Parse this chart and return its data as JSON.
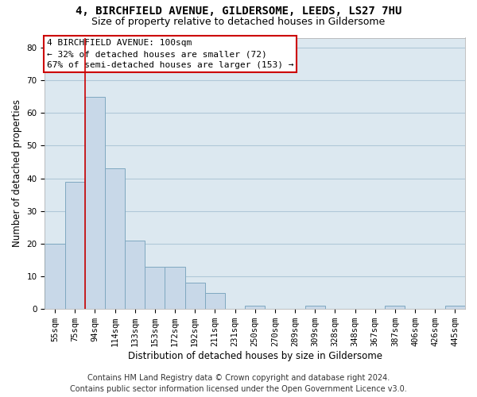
{
  "title1": "4, BIRCHFIELD AVENUE, GILDERSOME, LEEDS, LS27 7HU",
  "title2": "Size of property relative to detached houses in Gildersome",
  "xlabel": "Distribution of detached houses by size in Gildersome",
  "ylabel": "Number of detached properties",
  "bar_labels": [
    "55sqm",
    "75sqm",
    "94sqm",
    "114sqm",
    "133sqm",
    "153sqm",
    "172sqm",
    "192sqm",
    "211sqm",
    "231sqm",
    "250sqm",
    "270sqm",
    "289sqm",
    "309sqm",
    "328sqm",
    "348sqm",
    "367sqm",
    "387sqm",
    "406sqm",
    "426sqm",
    "445sqm"
  ],
  "bar_values": [
    20,
    39,
    65,
    43,
    21,
    13,
    13,
    8,
    5,
    0,
    1,
    0,
    0,
    1,
    0,
    0,
    0,
    1,
    0,
    0,
    1
  ],
  "bar_color": "#c8d8e8",
  "bar_edge_color": "#7fa8c0",
  "vline_index": 2,
  "vline_color": "#cc0000",
  "annotation_text": "4 BIRCHFIELD AVENUE: 100sqm\n← 32% of detached houses are smaller (72)\n67% of semi-detached houses are larger (153) →",
  "annotation_box_color": "#ffffff",
  "annotation_box_edge_color": "#cc0000",
  "ylim": [
    0,
    83
  ],
  "yticks": [
    0,
    10,
    20,
    30,
    40,
    50,
    60,
    70,
    80
  ],
  "grid_color": "#b0c8d8",
  "bg_color": "#dce8f0",
  "footer1": "Contains HM Land Registry data © Crown copyright and database right 2024.",
  "footer2": "Contains public sector information licensed under the Open Government Licence v3.0.",
  "title1_fontsize": 10,
  "title2_fontsize": 9,
  "tick_fontsize": 7.5,
  "ylabel_fontsize": 8.5,
  "xlabel_fontsize": 8.5,
  "footer_fontsize": 7,
  "annotation_fontsize": 8
}
